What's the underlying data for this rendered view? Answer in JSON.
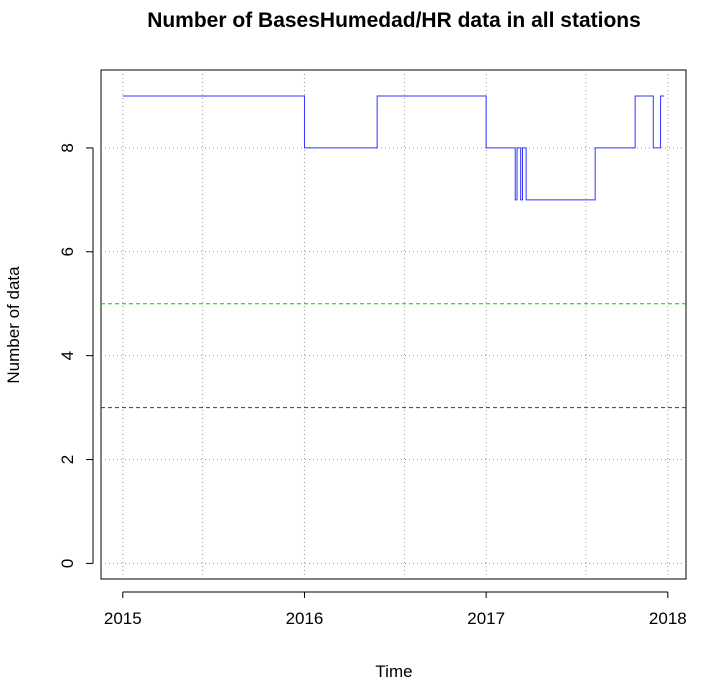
{
  "chart_data": {
    "type": "line",
    "title": "Number of BasesHumedad/HR data in all stations",
    "xlabel": "Time",
    "ylabel": "Number of data",
    "xlim": [
      2014.88,
      2018.1
    ],
    "ylim": [
      -0.3,
      9.5
    ],
    "x_ticks": [
      {
        "value": 2015,
        "label": "2015"
      },
      {
        "value": 2016,
        "label": "2016"
      },
      {
        "value": 2017,
        "label": "2017"
      },
      {
        "value": 2018,
        "label": "2018"
      }
    ],
    "y_ticks": [
      {
        "value": 0,
        "label": "0"
      },
      {
        "value": 2,
        "label": "2"
      },
      {
        "value": 4,
        "label": "4"
      },
      {
        "value": 6,
        "label": "6"
      },
      {
        "value": 8,
        "label": "8"
      }
    ],
    "x_grid": [
      2015,
      2015.44,
      2016,
      2016.55,
      2017,
      2017.55,
      2018
    ],
    "y_grid": [
      0,
      2,
      4,
      6,
      8
    ],
    "grid": true,
    "reference_lines": [
      {
        "value": 5,
        "color": "#00cc00",
        "style": "dashed"
      },
      {
        "value": 3,
        "color": "#cc0000",
        "style": "dashed"
      }
    ],
    "series": [
      {
        "color": "#3333ff",
        "step": true,
        "x": [
          2015.0,
          2016.0,
          2016.4,
          2017.0,
          2017.16,
          2017.17,
          2017.19,
          2017.2,
          2017.22,
          2017.6,
          2017.82,
          2017.92,
          2017.96,
          2017.98
        ],
        "values": [
          9,
          8,
          9,
          8,
          7,
          8,
          7,
          8,
          7,
          8,
          9,
          8,
          9,
          9
        ]
      }
    ]
  }
}
